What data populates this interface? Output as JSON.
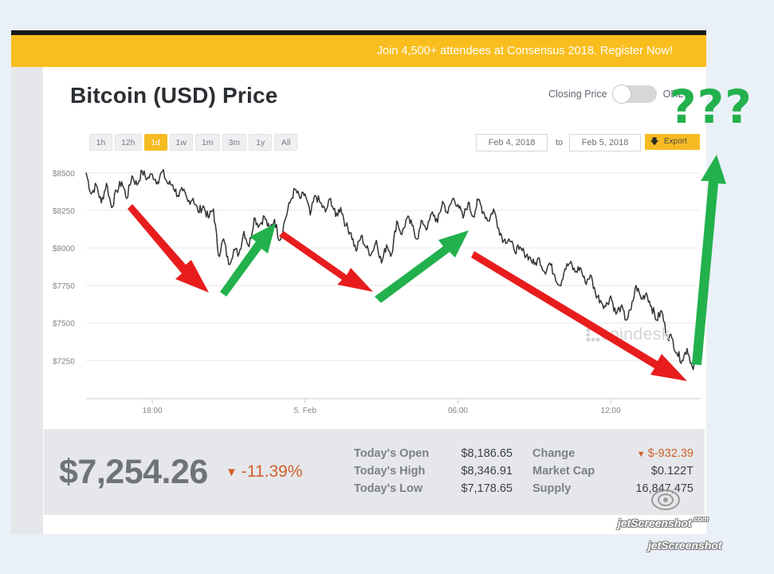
{
  "promo": {
    "text": "Join 4,500+ attendees at Consensus 2018. Register Now!"
  },
  "header": {
    "title": "Bitcoin (USD) Price"
  },
  "toggle": {
    "left_label": "Closing Price",
    "right_label": "OHLC"
  },
  "range_buttons": [
    "1h",
    "12h",
    "1d",
    "1w",
    "1m",
    "3m",
    "1y",
    "All"
  ],
  "active_range": "1d",
  "date_range": {
    "from": "Feb 4, 2018",
    "to_label": "to",
    "to": "Feb 5, 2018",
    "export_label": "Export"
  },
  "watermark": {
    "text": "coindesk"
  },
  "chart_data": {
    "type": "line",
    "title": "Bitcoin (USD) Price",
    "xlabel": "",
    "ylabel": "",
    "ylim": [
      7050,
      8600
    ],
    "yticks": [
      {
        "value": 8500,
        "label": "$8500"
      },
      {
        "value": 8250,
        "label": "$8250"
      },
      {
        "value": 8000,
        "label": "$8000"
      },
      {
        "value": 7750,
        "label": "$7750"
      },
      {
        "value": 7500,
        "label": "$7500"
      },
      {
        "value": 7250,
        "label": "$7250"
      }
    ],
    "xlim": [
      15.4,
      39.5
    ],
    "xticks": [
      {
        "value": 18,
        "label": "18:00"
      },
      {
        "value": 24,
        "label": "5. Feb"
      },
      {
        "value": 30,
        "label": "06:00"
      },
      {
        "value": 36,
        "label": "12:00"
      }
    ],
    "series": [
      {
        "name": "Closing Price",
        "color": "#333333",
        "x": [
          15.4,
          15.6,
          15.8,
          16.0,
          16.2,
          16.4,
          16.6,
          16.8,
          17.0,
          17.2,
          17.4,
          17.6,
          17.8,
          18.0,
          18.2,
          18.4,
          18.6,
          18.8,
          19.0,
          19.2,
          19.4,
          19.6,
          19.8,
          20.0,
          20.2,
          20.4,
          20.6,
          20.8,
          21.0,
          21.2,
          21.4,
          21.6,
          21.8,
          22.0,
          22.2,
          22.4,
          22.6,
          22.8,
          23.0,
          23.2,
          23.4,
          23.6,
          23.8,
          24.0,
          24.2,
          24.4,
          24.6,
          24.8,
          25.0,
          25.2,
          25.4,
          25.6,
          25.8,
          26.0,
          26.2,
          26.4,
          26.6,
          26.8,
          27.0,
          27.2,
          27.4,
          27.6,
          27.8,
          28.0,
          28.2,
          28.4,
          28.6,
          28.8,
          29.0,
          29.2,
          29.4,
          29.6,
          29.8,
          30.0,
          30.2,
          30.4,
          30.6,
          30.8,
          31.0,
          31.2,
          31.4,
          31.6,
          31.8,
          32.0,
          32.2,
          32.4,
          32.6,
          32.8,
          33.0,
          33.2,
          33.4,
          33.6,
          33.8,
          34.0,
          34.2,
          34.4,
          34.6,
          34.8,
          35.0,
          35.2,
          35.4,
          35.6,
          35.8,
          36.0,
          36.2,
          36.4,
          36.6,
          36.8,
          37.0,
          37.2,
          37.4,
          37.6,
          37.8,
          38.0,
          38.2,
          38.4,
          38.6,
          38.8,
          39.0,
          39.2,
          39.4
        ],
        "values": [
          8500,
          8360,
          8420,
          8300,
          8430,
          8270,
          8380,
          8440,
          8330,
          8480,
          8420,
          8510,
          8460,
          8490,
          8440,
          8510,
          8430,
          8420,
          8350,
          8380,
          8310,
          8330,
          8240,
          8280,
          8200,
          8260,
          7950,
          8060,
          7890,
          7990,
          7960,
          8110,
          8010,
          8200,
          8150,
          8210,
          8120,
          8190,
          8050,
          8180,
          8300,
          8390,
          8330,
          8360,
          8220,
          8350,
          8300,
          8240,
          8330,
          8210,
          8270,
          8150,
          8100,
          7980,
          8080,
          8000,
          7960,
          8050,
          7900,
          8020,
          7960,
          8180,
          8090,
          8200,
          8150,
          8060,
          8180,
          8130,
          8240,
          8170,
          8310,
          8230,
          8330,
          8290,
          8200,
          8300,
          8210,
          8320,
          8240,
          8180,
          8260,
          8130,
          8050,
          8060,
          7990,
          7990,
          7970,
          7940,
          7890,
          7930,
          7840,
          7900,
          7820,
          7750,
          7860,
          7900,
          7840,
          7870,
          7770,
          7820,
          7700,
          7650,
          7610,
          7680,
          7560,
          7610,
          7520,
          7590,
          7750,
          7660,
          7700,
          7610,
          7520,
          7580,
          7420,
          7400,
          7300,
          7250,
          7330,
          7210,
          7254
        ]
      }
    ]
  },
  "annotations": {
    "question_marks": "???"
  },
  "stats": {
    "price": "$7,254.26",
    "change_pct": "-11.39%",
    "rows": [
      {
        "label": "Today's Open",
        "value": "$8,186.65",
        "label2": "Change",
        "value2": "$-932.39"
      },
      {
        "label": "Today's High",
        "value": "$8,346.91",
        "label2": "Market Cap",
        "value2": "$0.122T"
      },
      {
        "label": "Today's Low",
        "value": "$7,178.65",
        "label2": "Supply",
        "value2": "16,847,475"
      }
    ]
  },
  "screenshot_watermark": {
    "text": "jetScreenshot",
    "subtext": ".com"
  },
  "colors": {
    "accent": "#f6bb22",
    "down": "#d0602a",
    "arrow_red": "#e81c1c",
    "arrow_green": "#22b14c"
  }
}
